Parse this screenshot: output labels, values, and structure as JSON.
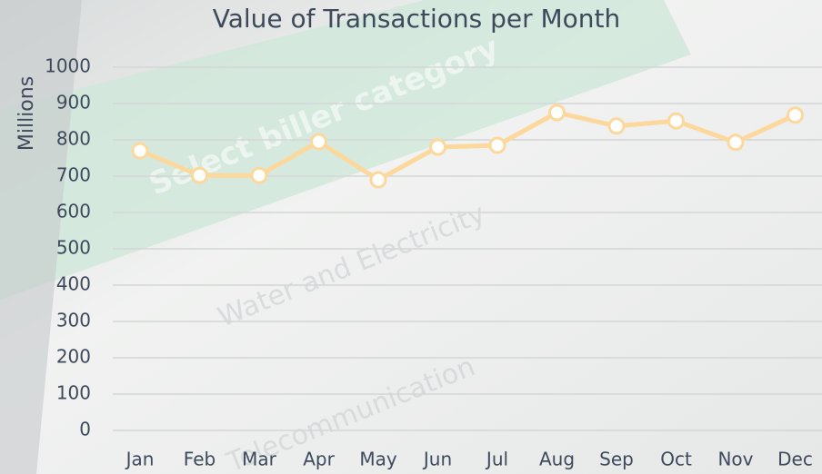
{
  "background_texts": [
    "Select biller category",
    "Water and Electricity",
    "Telecommunication"
  ],
  "chart_data": {
    "type": "line",
    "title": "Value of Transactions per Month",
    "y_label": "Millions",
    "categories": [
      "Jan",
      "Feb",
      "Mar",
      "Apr",
      "May",
      "Jun",
      "Jul",
      "Aug",
      "Sep",
      "Oct",
      "Nov",
      "Dec"
    ],
    "values": [
      770,
      702,
      702,
      795,
      690,
      780,
      785,
      875,
      838,
      852,
      793,
      868
    ],
    "color": "#fcd89c",
    "ylim": [
      0,
      1000
    ],
    "yticks": [
      0,
      100,
      200,
      300,
      400,
      500,
      600,
      700,
      800,
      900,
      1000
    ],
    "grid": true
  }
}
